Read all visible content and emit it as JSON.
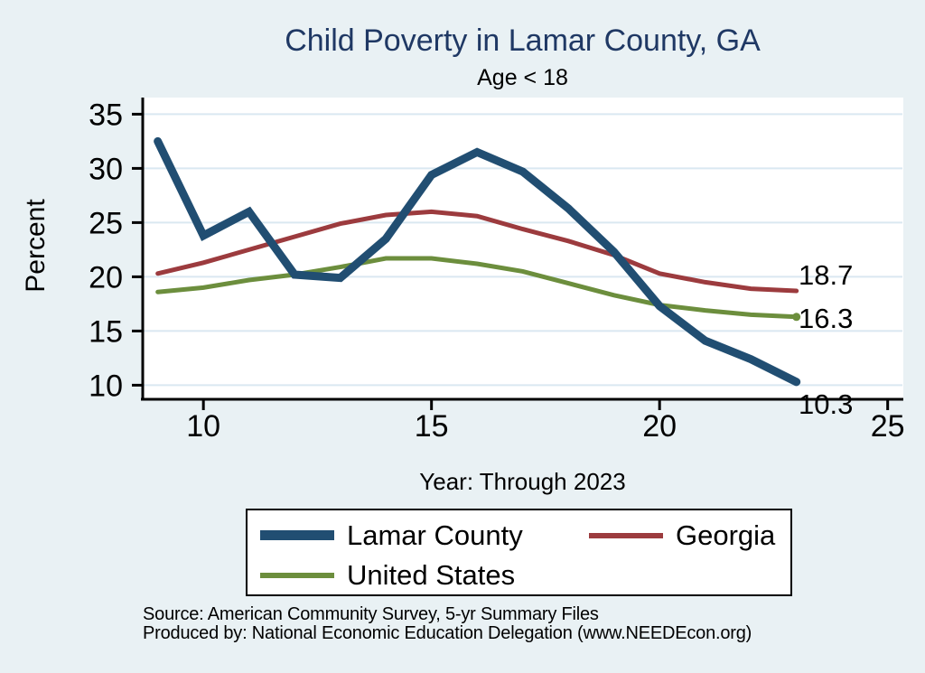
{
  "chart_data": {
    "type": "line",
    "title": "Child Poverty in Lamar County, GA",
    "subtitle": "Age < 18",
    "xlabel": "Year: Through 2023",
    "ylabel": "Percent",
    "x": [
      9,
      10,
      11,
      12,
      13,
      14,
      15,
      16,
      17,
      18,
      19,
      20,
      21,
      22,
      23
    ],
    "xticks": [
      10,
      15,
      20,
      25
    ],
    "yticks": [
      10,
      15,
      20,
      25,
      30,
      35
    ],
    "xlim": [
      8.65,
      25.35
    ],
    "ylim": [
      8.7,
      36.4
    ],
    "grid": "horizontal",
    "grid_color": "#DAE8F1",
    "legend_position": "bottom",
    "series": [
      {
        "name": "Lamar County",
        "color": "#214E72",
        "line_width": 9,
        "values": [
          32.5,
          23.8,
          26.0,
          20.2,
          19.9,
          23.5,
          29.4,
          31.5,
          29.7,
          26.3,
          22.3,
          17.3,
          14.1,
          12.4,
          10.3
        ]
      },
      {
        "name": "Georgia",
        "color": "#9C3B3E",
        "line_width": 5,
        "values": [
          20.3,
          21.3,
          22.5,
          23.7,
          24.9,
          25.7,
          26.0,
          25.6,
          24.4,
          23.3,
          22.0,
          20.3,
          19.5,
          18.9,
          18.7
        ]
      },
      {
        "name": "United States",
        "color": "#6C8E3D",
        "line_width": 5,
        "end_dot": true,
        "values": [
          18.6,
          19.0,
          19.7,
          20.2,
          20.9,
          21.7,
          21.7,
          21.2,
          20.5,
          19.4,
          18.3,
          17.4,
          16.9,
          16.5,
          16.3
        ]
      }
    ],
    "end_labels": [
      {
        "series": "Georgia",
        "text": "18.7"
      },
      {
        "series": "United States",
        "text": "16.3"
      },
      {
        "series": "Lamar County",
        "text": "10.3"
      }
    ]
  },
  "footer": {
    "line1": "Source: American Community Survey, 5-yr Summary Files",
    "line2": "Produced by: National Economic Education Delegation (www.NEEDEcon.org)"
  }
}
